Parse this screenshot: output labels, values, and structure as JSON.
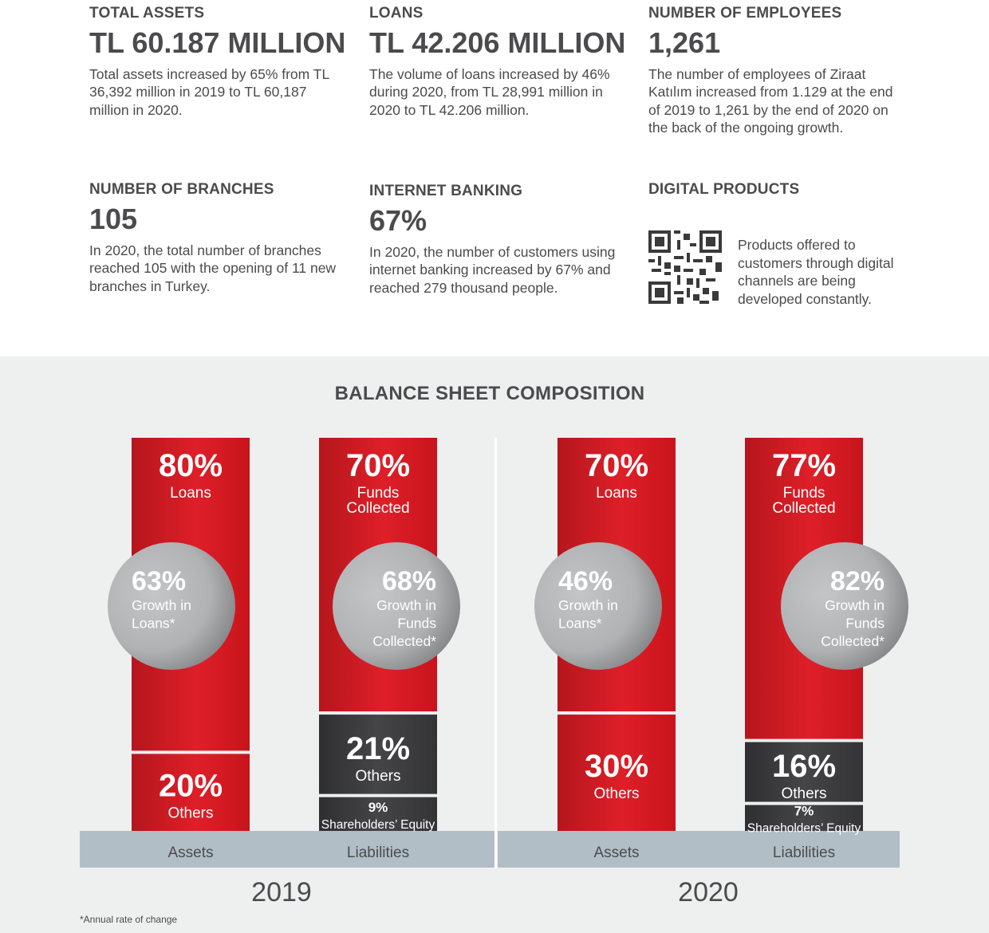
{
  "stats": [
    {
      "label": "TOTAL ASSETS",
      "value": "TL 60.187 MILLION",
      "desc": "Total assets increased by 65% from TL 36,392 million in 2019 to TL 60,187 million in 2020."
    },
    {
      "label": "LOANS",
      "value": "TL 42.206 MILLION",
      "desc": "The volume of loans increased by 46% during 2020, from TL 28,991 million in 2020 to TL 42.206 million."
    },
    {
      "label": "NUMBER OF EMPLOYEES",
      "value": "1,261",
      "desc": "The number of employees of Ziraat Katılım increased from 1.129 at the end of 2019 to 1,261 by the end of 2020 on the back of the ongoing growth."
    },
    {
      "label": "NUMBER OF BRANCHES",
      "value": "105",
      "desc": "In 2020, the total number of branches reached 105 with the opening of 11 new branches in Turkey."
    },
    {
      "label": "INTERNET BANKING",
      "value": "67%",
      "desc": "In 2020, the number of customers using internet banking increased by 67% and reached 279 thousand people."
    },
    {
      "label": "DIGITAL PRODUCTS",
      "value": "",
      "desc": "Products offered to customers through digital channels are being developed constantly."
    }
  ],
  "footnote": "*Annual rate of change",
  "colors": {
    "red": "#d81e27",
    "dark": "#3d3d3f",
    "axis_band": "#b1bec6",
    "bubble": "#b8b9bb",
    "panel": "#eeefef"
  },
  "chart_data": {
    "type": "bar",
    "title": "BALANCE SHEET COMPOSITION",
    "stacked": true,
    "ylim": [
      0,
      100
    ],
    "groups": [
      {
        "year": "2019",
        "bars": [
          {
            "category": "Assets",
            "segments": [
              {
                "name": "Others",
                "value": 20,
                "pct": "20%",
                "label": "Others",
                "color": "red"
              },
              {
                "name": "Loans",
                "value": 80,
                "pct": "80%",
                "label": "Loans",
                "color": "red"
              }
            ],
            "growth": {
              "pct": "63%",
              "lines": [
                "Growth in",
                "Loans*"
              ]
            }
          },
          {
            "category": "Liabilities",
            "segments": [
              {
                "name": "Shareholders' Equity",
                "value": 9,
                "pct": "9%",
                "label": "Shareholders’ Equity",
                "color": "dark"
              },
              {
                "name": "Others",
                "value": 21,
                "pct": "21%",
                "label": "Others",
                "color": "dark"
              },
              {
                "name": "Funds Collected",
                "value": 70,
                "pct": "70%",
                "label": "Funds Collected",
                "color": "red"
              }
            ],
            "growth": {
              "pct": "68%",
              "lines": [
                "Growth in",
                "Funds",
                "Collected*"
              ]
            }
          }
        ]
      },
      {
        "year": "2020",
        "bars": [
          {
            "category": "Assets",
            "segments": [
              {
                "name": "Others",
                "value": 30,
                "pct": "30%",
                "label": "Others",
                "color": "red"
              },
              {
                "name": "Loans",
                "value": 70,
                "pct": "70%",
                "label": "Loans",
                "color": "red"
              }
            ],
            "growth": {
              "pct": "46%",
              "lines": [
                "Growth in",
                "Loans*"
              ]
            }
          },
          {
            "category": "Liabilities",
            "segments": [
              {
                "name": "Shareholders' Equity",
                "value": 7,
                "pct": "7%",
                "label": "Shareholders’ Equity",
                "color": "dark"
              },
              {
                "name": "Others",
                "value": 16,
                "pct": "16%",
                "label": "Others",
                "color": "dark"
              },
              {
                "name": "Funds Collected",
                "value": 77,
                "pct": "77%",
                "label": "Funds Collected",
                "color": "red"
              }
            ],
            "growth": {
              "pct": "82%",
              "lines": [
                "Growth in",
                "Funds",
                "Collected*"
              ]
            }
          }
        ]
      }
    ]
  }
}
